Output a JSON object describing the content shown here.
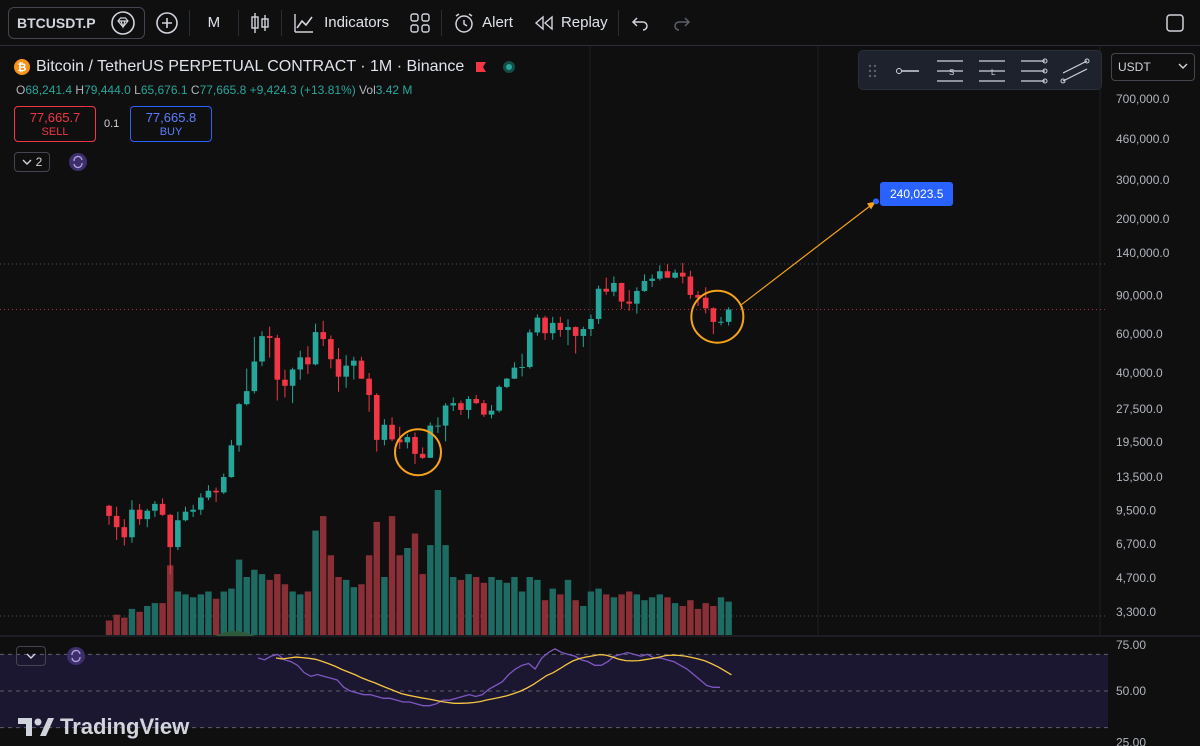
{
  "topbar": {
    "symbol": "BTCUSDT.P",
    "interval": "M",
    "indicators_label": "Indicators",
    "alert_label": "Alert",
    "replay_label": "Replay"
  },
  "legend": {
    "title": "Bitcoin / TetherUS PERPETUAL CONTRACT · 1M · Binance",
    "open_label": "O",
    "open": "68,241.4",
    "high_label": "H",
    "high": "79,444.0",
    "low_label": "L",
    "low": "65,676.1",
    "close_label": "C",
    "close": "77,665.8",
    "change": "+9,424.3 (+13.81%)",
    "vol_label": "Vol",
    "vol": "3.42 M"
  },
  "trade": {
    "sell_price": "77,665.7",
    "sell_label": "SELL",
    "qty": "0.1",
    "buy_price": "77,665.8",
    "buy_label": "BUY"
  },
  "indicator_count": "2",
  "currency": "USDT",
  "target_label": "240,023.5",
  "price_axis": [
    "700,000.0",
    "460,000.0",
    "300,000.0",
    "200,000.0",
    "140,000.0",
    "90,000.0",
    "60,000.0",
    "40,000.0",
    "27,500.0",
    "19,500.0",
    "13,500.0",
    "9,500.0",
    "6,700.0",
    "4,700.0",
    "3,300.0"
  ],
  "rsi_axis": [
    "75.00",
    "50.00",
    "25.00"
  ],
  "brand": "TradingView",
  "colors": {
    "up": "#26a69a",
    "down": "#f23645",
    "accent": "#2962ff",
    "circle": "#f7a21b",
    "rsi_line": "#7e57c2",
    "rsi_ma": "#f5c542"
  },
  "chart_data": {
    "type": "candlestick",
    "scale": "log",
    "candles": [
      [
        10000,
        10100,
        8200,
        9000
      ],
      [
        9000,
        9900,
        7000,
        8000
      ],
      [
        8000,
        8700,
        6600,
        7200
      ],
      [
        7200,
        10600,
        6800,
        9600
      ],
      [
        9600,
        10200,
        8200,
        8700
      ],
      [
        8700,
        9700,
        8000,
        9500
      ],
      [
        9500,
        10500,
        8900,
        10200
      ],
      [
        10200,
        10800,
        9000,
        9100
      ],
      [
        9100,
        9200,
        4900,
        6500
      ],
      [
        6500,
        9400,
        6300,
        8600
      ],
      [
        8600,
        9900,
        8500,
        9400
      ],
      [
        9400,
        10100,
        8900,
        9600
      ],
      [
        9600,
        11400,
        9100,
        10900
      ],
      [
        10900,
        12400,
        10600,
        11700
      ],
      [
        11700,
        12100,
        10400,
        11500
      ],
      [
        11500,
        14000,
        11300,
        13500
      ],
      [
        13500,
        19900,
        13400,
        18800
      ],
      [
        18800,
        29300,
        17600,
        28900
      ],
      [
        28900,
        41900,
        28500,
        33100
      ],
      [
        33100,
        58300,
        32300,
        45100
      ],
      [
        45100,
        61800,
        43000,
        58800
      ],
      [
        58800,
        64900,
        47000,
        57700
      ],
      [
        57700,
        59600,
        30000,
        37300
      ],
      [
        37300,
        41400,
        31000,
        35000
      ],
      [
        35000,
        42300,
        29200,
        41500
      ],
      [
        41500,
        50500,
        37300,
        47100
      ],
      [
        47100,
        52900,
        39600,
        43800
      ],
      [
        43800,
        67000,
        43300,
        61300
      ],
      [
        61300,
        69000,
        53000,
        57000
      ],
      [
        57000,
        59200,
        42000,
        46200
      ],
      [
        46200,
        51900,
        32900,
        38500
      ],
      [
        38500,
        48200,
        34300,
        43200
      ],
      [
        43200,
        47400,
        37400,
        45500
      ],
      [
        45500,
        47400,
        37600,
        37700
      ],
      [
        37700,
        40000,
        26700,
        31800
      ],
      [
        31800,
        32400,
        17600,
        19900
      ],
      [
        19900,
        24700,
        18800,
        23300
      ],
      [
        23300,
        25200,
        19600,
        20000
      ],
      [
        20000,
        22800,
        18100,
        19400
      ],
      [
        19400,
        21100,
        18200,
        20500
      ],
      [
        20500,
        21500,
        15500,
        17200
      ],
      [
        17200,
        18400,
        16300,
        16500
      ],
      [
        16500,
        23900,
        16500,
        23100
      ],
      [
        23100,
        25200,
        21400,
        23100
      ],
      [
        23100,
        29200,
        19600,
        28500
      ],
      [
        28500,
        31000,
        26900,
        29200
      ],
      [
        29200,
        30000,
        25800,
        27200
      ],
      [
        27200,
        31400,
        24800,
        30500
      ],
      [
        30500,
        31800,
        28900,
        29200
      ],
      [
        29200,
        30200,
        25300,
        25900
      ],
      [
        25900,
        28600,
        24900,
        27000
      ],
      [
        27000,
        35200,
        26500,
        34600
      ],
      [
        34600,
        38000,
        34100,
        37700
      ],
      [
        37700,
        44700,
        37600,
        42300
      ],
      [
        42300,
        48900,
        38600,
        42600
      ],
      [
        42600,
        63000,
        41900,
        61100
      ],
      [
        61100,
        73800,
        59000,
        71300
      ],
      [
        71300,
        72700,
        56500,
        60600
      ],
      [
        60600,
        71900,
        56600,
        67500
      ],
      [
        67500,
        72000,
        58400,
        62700
      ],
      [
        62700,
        70000,
        53500,
        64600
      ],
      [
        64600,
        65100,
        49000,
        58900
      ],
      [
        58900,
        64900,
        52500,
        63300
      ],
      [
        63300,
        73600,
        58800,
        70300
      ],
      [
        70300,
        99600,
        66800,
        96400
      ],
      [
        96400,
        108300,
        90500,
        93500
      ],
      [
        93500,
        109600,
        89200,
        102400
      ],
      [
        102400,
        102500,
        78200,
        84300
      ],
      [
        84300,
        95000,
        76600,
        82500
      ],
      [
        82500,
        97900,
        74400,
        94200
      ],
      [
        94200,
        112000,
        93300,
        104600
      ],
      [
        104600,
        111900,
        98200,
        107100
      ],
      [
        107100,
        123200,
        105100,
        115700
      ],
      [
        115700,
        124500,
        108000,
        108200
      ],
      [
        108200,
        117900,
        107200,
        114000
      ],
      [
        114000,
        126200,
        102000,
        109500
      ],
      [
        109500,
        116400,
        86800,
        90400
      ],
      [
        90400,
        94200,
        80500,
        87800
      ],
      [
        87800,
        97900,
        74500,
        78600
      ],
      [
        78600,
        79400,
        60000,
        68200
      ],
      [
        68200,
        71900,
        65800,
        68300
      ],
      [
        68241,
        79444,
        65676,
        77666
      ]
    ],
    "volumes_rel": [
      0.1,
      0.14,
      0.12,
      0.18,
      0.16,
      0.2,
      0.22,
      0.22,
      0.48,
      0.3,
      0.28,
      0.26,
      0.28,
      0.3,
      0.25,
      0.3,
      0.32,
      0.52,
      0.4,
      0.45,
      0.42,
      0.38,
      0.42,
      0.35,
      0.3,
      0.28,
      0.3,
      0.72,
      0.82,
      0.55,
      0.4,
      0.38,
      0.33,
      0.35,
      0.55,
      0.78,
      0.4,
      0.82,
      0.55,
      0.6,
      0.7,
      0.42,
      0.62,
      1.0,
      0.62,
      0.4,
      0.38,
      0.42,
      0.4,
      0.36,
      0.4,
      0.38,
      0.36,
      0.4,
      0.3,
      0.4,
      0.38,
      0.24,
      0.32,
      0.28,
      0.38,
      0.24,
      0.2,
      0.3,
      0.32,
      0.28,
      0.26,
      0.28,
      0.3,
      0.28,
      0.24,
      0.26,
      0.28,
      0.26,
      0.22,
      0.2,
      0.24,
      0.18,
      0.22,
      0.2,
      0.26,
      0.23
    ],
    "target": 240023.5,
    "rsi_range": [
      20,
      80
    ],
    "rsi": [
      68,
      67,
      69,
      70,
      67,
      66,
      64,
      60,
      58,
      59,
      58,
      57,
      56,
      52,
      50,
      49,
      48,
      48,
      47,
      46,
      46,
      45,
      44,
      44,
      43,
      42,
      42,
      43,
      45,
      45,
      46,
      47,
      48,
      47,
      48,
      51,
      53,
      55,
      59,
      62,
      64,
      65,
      62,
      68,
      71,
      73,
      71,
      70,
      69,
      67,
      66,
      64,
      64,
      66,
      69,
      70,
      71,
      70,
      69,
      70,
      68,
      68,
      67,
      66,
      64,
      62,
      59,
      56,
      53,
      52,
      52
    ]
  }
}
